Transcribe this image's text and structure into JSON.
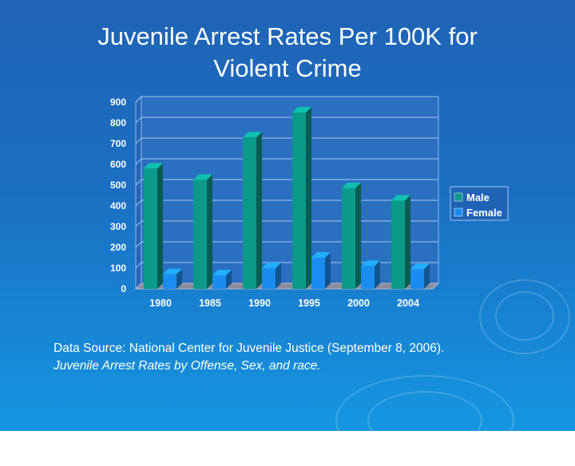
{
  "title_line1": "Juvenile Arrest Rates Per 100K for",
  "title_line2": "Violent Crime",
  "source_line1": "Data Source: National Center for Juvenile Justice (September 8, 2006).",
  "source_line2": "Juvenile Arrest Rates by Offense, Sex, and race.",
  "chart_data": {
    "type": "bar",
    "title": "Juvenile Arrest Rates Per 100K for Violent Crime",
    "categories": [
      "1980",
      "1985",
      "1990",
      "1995",
      "2000",
      "2004"
    ],
    "series": [
      {
        "name": "Male",
        "values": [
          580,
          525,
          730,
          850,
          485,
          425
        ],
        "color": "#0b9a8a"
      },
      {
        "name": "Female",
        "values": [
          70,
          65,
          100,
          150,
          110,
          95
        ],
        "color": "#1a8cf0"
      }
    ],
    "ylim": [
      0,
      900
    ],
    "yticks": [
      0,
      100,
      200,
      300,
      400,
      500,
      600,
      700,
      800,
      900
    ],
    "grid": true,
    "legend": "right"
  }
}
